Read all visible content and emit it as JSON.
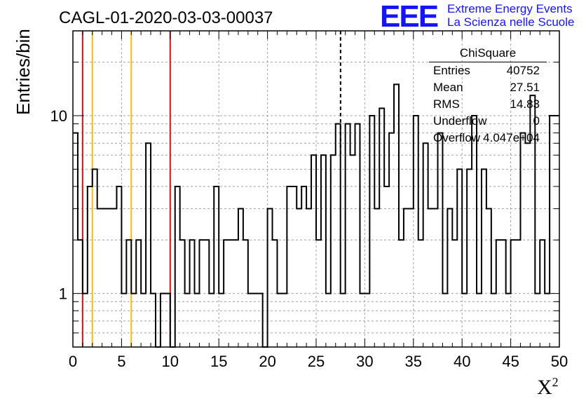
{
  "title": "CAGL-01-2020-03-03-00037",
  "logo": {
    "mark": "EEE",
    "line1": "Extreme Energy Events",
    "line2": "La Scienza nelle Scuole",
    "color": "#1414ff"
  },
  "stats_box": {
    "title": "ChiSquare",
    "rows": [
      {
        "label": "Entries",
        "value": "40752"
      },
      {
        "label": "Mean",
        "value": "27.51"
      },
      {
        "label": "RMS",
        "value": "14.83"
      },
      {
        "label": "Underflow",
        "value": "0"
      },
      {
        "label": "Overflow",
        "value": "4.047e+04"
      }
    ]
  },
  "chart_data": {
    "type": "histogram",
    "xlabel": "X",
    "xlabel_superscript": "2",
    "ylabel": "Entries/bin",
    "xlim": [
      0,
      50
    ],
    "ylim": [
      0.5,
      30
    ],
    "yscale": "log",
    "grid": true,
    "bin_width": 0.5,
    "x_ticks": [
      "0",
      "5",
      "10",
      "15",
      "20",
      "25",
      "30",
      "35",
      "40",
      "45",
      "50"
    ],
    "y_tick_labels": [
      {
        "value": 1,
        "label": "1"
      },
      {
        "value": 10,
        "label": "10"
      }
    ],
    "bin_counts": [
      8,
      2,
      1,
      4,
      5,
      3,
      3,
      3,
      3,
      4,
      1,
      2,
      1,
      2,
      1,
      7,
      1,
      0,
      1,
      1,
      0,
      4,
      2,
      1,
      2,
      1,
      2,
      2,
      1,
      4,
      1,
      2,
      2,
      2,
      3,
      2,
      1,
      1,
      1,
      0,
      3,
      2,
      1,
      1,
      4,
      4,
      3,
      4,
      3,
      6,
      2,
      6,
      1,
      6,
      9,
      1,
      9,
      6,
      9,
      1,
      1,
      10,
      3,
      11,
      4,
      8,
      15,
      2,
      3,
      3,
      10,
      2,
      7,
      3,
      3,
      8,
      1,
      3,
      2,
      5,
      1,
      5,
      10,
      1,
      5,
      3,
      1,
      2,
      2,
      1,
      2,
      2,
      8,
      7,
      13,
      1,
      2,
      1,
      10,
      10
    ],
    "vertical_lines": [
      {
        "x": 1,
        "color": "#e01010",
        "style": "solid"
      },
      {
        "x": 2,
        "color": "#f5c000",
        "style": "solid"
      },
      {
        "x": 6,
        "color": "#f5c000",
        "style": "solid"
      },
      {
        "x": 10,
        "color": "#e01010",
        "style": "solid"
      },
      {
        "x": 27.51,
        "color": "#000000",
        "style": "dashed"
      }
    ]
  }
}
